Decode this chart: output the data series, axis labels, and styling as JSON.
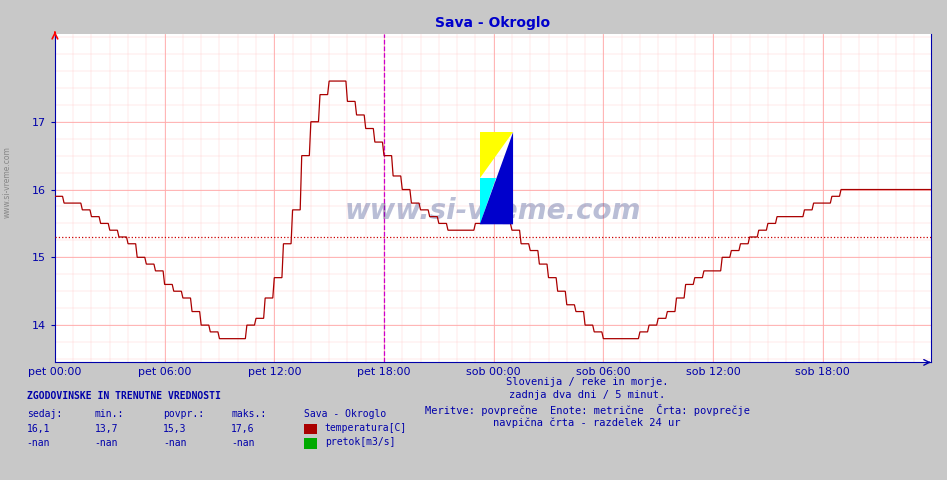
{
  "title": "Sava - Okroglo",
  "bg_color": "#c8c8c8",
  "plot_bg_color": "#ffffff",
  "line_color": "#aa0000",
  "avg_line_color": "#cc0000",
  "avg_value": 15.3,
  "ylim": [
    13.45,
    18.3
  ],
  "yticks": [
    14,
    15,
    16,
    17
  ],
  "xlabel_color": "#0000aa",
  "title_color": "#0000cc",
  "grid_color_major": "#ffaaaa",
  "grid_color_minor": "#ffcccc",
  "vline_color": "#cc00cc",
  "n_points": 576,
  "x_tick_labels": [
    "pet 00:00",
    "pet 06:00",
    "pet 12:00",
    "pet 18:00",
    "sob 00:00",
    "sob 06:00",
    "sob 12:00",
    "sob 18:00"
  ],
  "x_tick_positions": [
    0,
    72,
    144,
    216,
    288,
    360,
    432,
    504
  ],
  "vline_x": 216,
  "footer_lines": [
    "Slovenija / reke in morje.",
    "zadnja dva dni / 5 minut.",
    "Meritve: povprečne  Enote: metrične  Črta: povprečje",
    "navpična črta - razdelek 24 ur"
  ],
  "stats_header": "ZGODOVINSKE IN TRENUTNE VREDNOSTI",
  "stats_cols": [
    "sedaj:",
    "min.:",
    "povpr.:",
    "maks.:"
  ],
  "stats_vals_temp": [
    "16,1",
    "13,7",
    "15,3",
    "17,6"
  ],
  "stats_vals_flow": [
    "-nan",
    "-nan",
    "-nan",
    "-nan"
  ],
  "legend_temp": "temperatura[C]",
  "legend_flow": "pretok[m3/s]",
  "legend_temp_color": "#aa0000",
  "legend_flow_color": "#00aa00",
  "station_label": "Sava - Okroglo",
  "watermark_text": "www.si-vreme.com",
  "watermark_color": "#1a2a7a",
  "watermark_alpha": 0.3,
  "sidebar_text": "www.si-vreme.com",
  "sidebar_color": "#777777",
  "logo_yellow": "#ffff00",
  "logo_cyan": "#00ffff",
  "logo_blue": "#0000cc",
  "logo_teal": "#008888"
}
